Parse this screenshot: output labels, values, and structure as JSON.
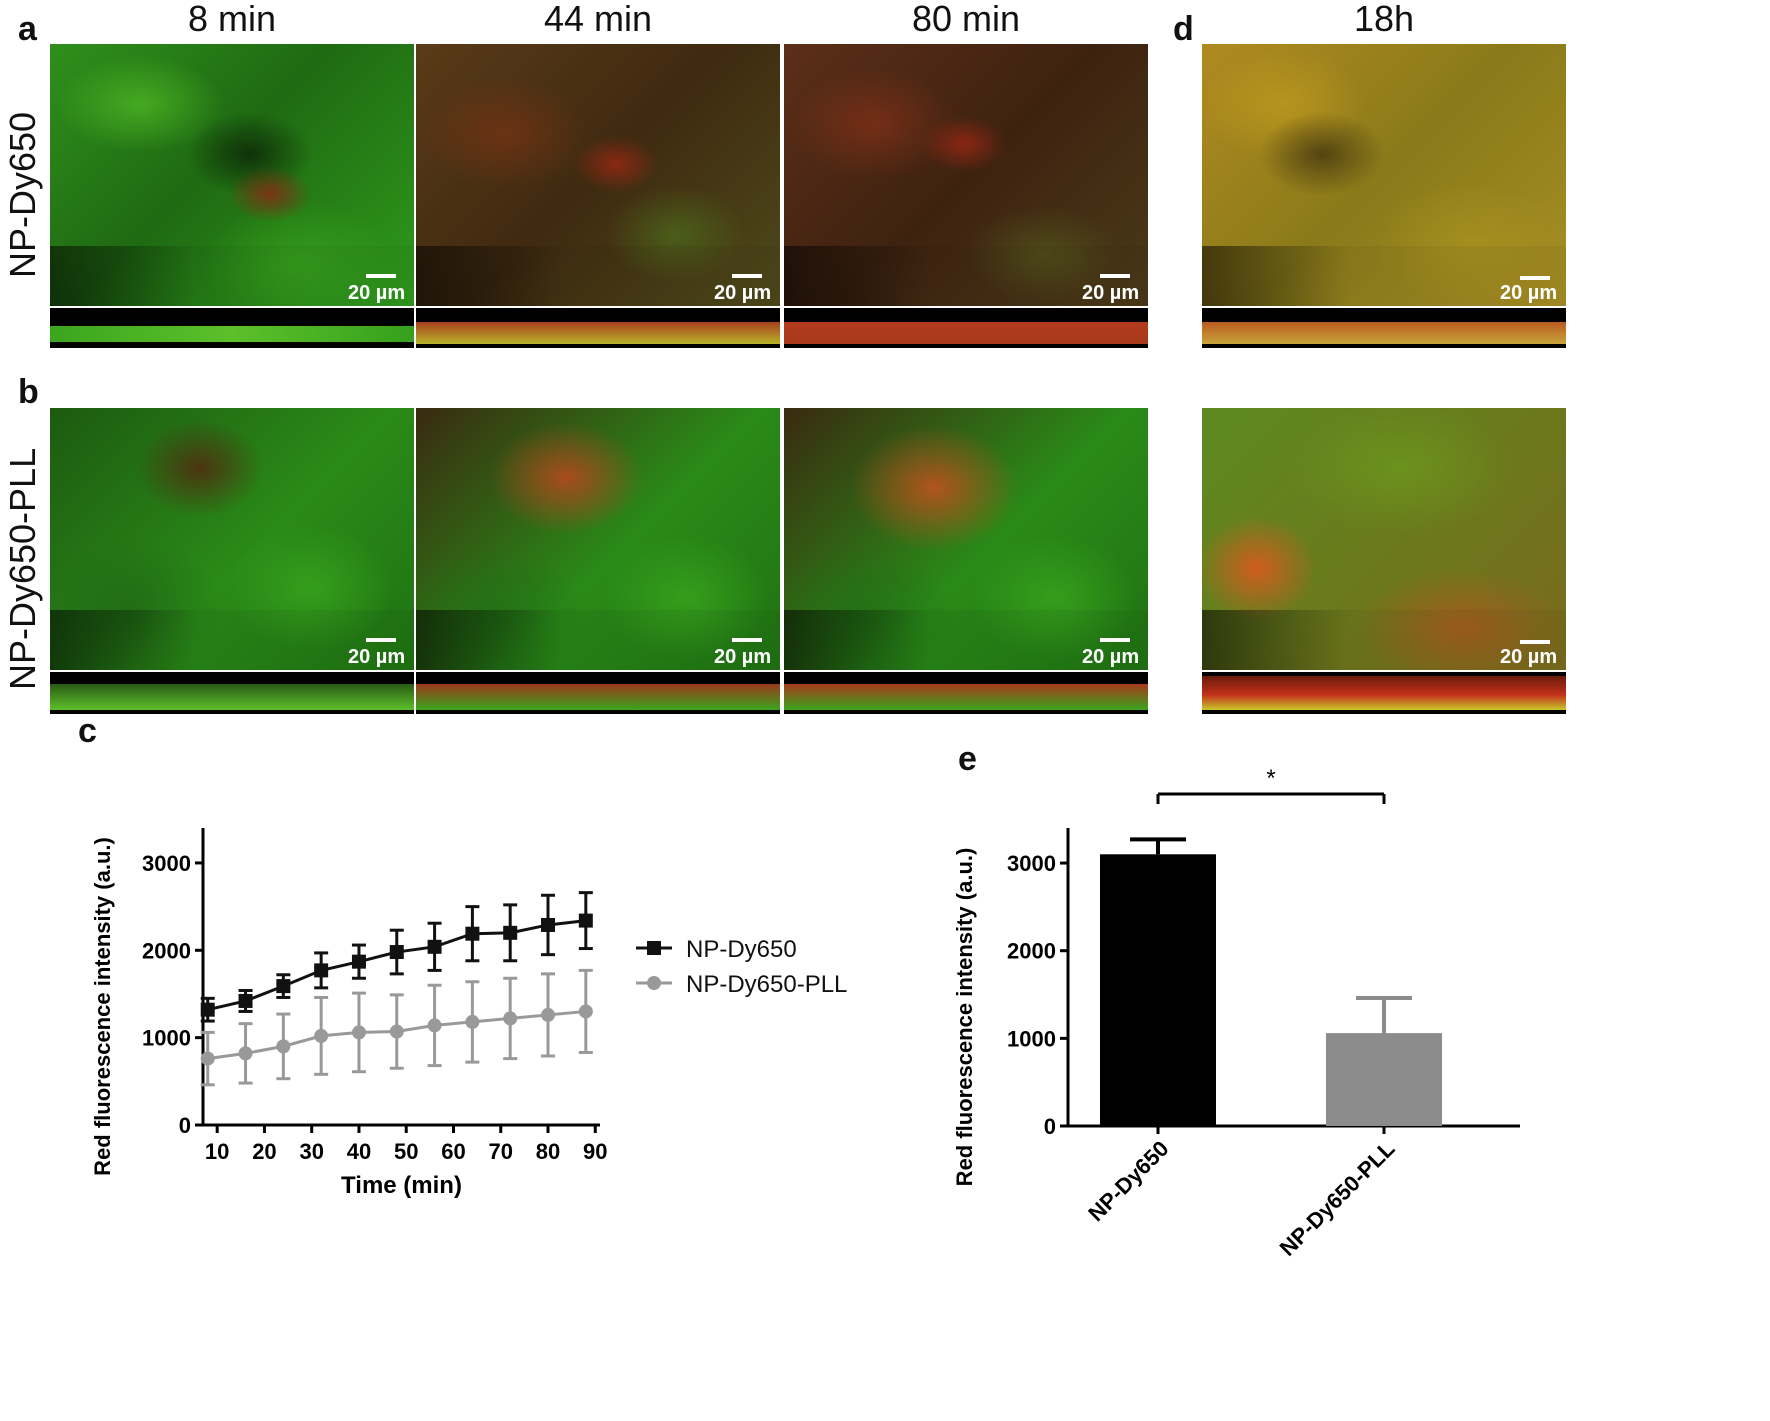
{
  "panel_letters": {
    "a": "a",
    "b": "b",
    "c": "c",
    "d": "d",
    "e": "e"
  },
  "columns": [
    "8 min",
    "44 min",
    "80 min",
    "18h"
  ],
  "rows": [
    "NP-Dy650",
    "NP-Dy650-PLL"
  ],
  "scale_bar_label": "20 µm",
  "colors": {
    "black_series": "#111111",
    "gray_series": "#999999",
    "bar_black": "#000000",
    "bar_gray": "#8c8c8c",
    "fluor_green": "#2fae1c",
    "fluor_red": "#c2301a",
    "fluor_yellow": "#c8b020"
  },
  "chart_data": [
    {
      "panel": "c",
      "type": "line",
      "xlabel": "Time (min)",
      "ylabel": "Red fluorescence intensity (a.u.)",
      "xlim": [
        7,
        91
      ],
      "ylim": [
        0,
        3400
      ],
      "xticks": [
        10,
        20,
        30,
        40,
        50,
        60,
        70,
        80,
        90
      ],
      "yticks": [
        0,
        1000,
        2000,
        3000
      ],
      "x": [
        8,
        16,
        24,
        32,
        40,
        48,
        56,
        64,
        72,
        80,
        88
      ],
      "series": [
        {
          "name": "NP-Dy650",
          "marker": "square",
          "values": [
            1320,
            1420,
            1590,
            1770,
            1870,
            1980,
            2040,
            2190,
            2200,
            2290,
            2340
          ],
          "errors": [
            130,
            120,
            130,
            200,
            190,
            250,
            270,
            310,
            320,
            340,
            320
          ]
        },
        {
          "name": "NP-Dy650-PLL",
          "marker": "circle",
          "values": [
            760,
            820,
            900,
            1020,
            1060,
            1070,
            1140,
            1180,
            1220,
            1260,
            1300
          ],
          "errors": [
            300,
            340,
            370,
            440,
            450,
            420,
            460,
            460,
            460,
            470,
            470
          ]
        }
      ],
      "legend": [
        "NP-Dy650",
        "NP-Dy650-PLL"
      ]
    },
    {
      "panel": "e",
      "type": "bar",
      "ylabel": "Red fluorescence intensity (a.u.)",
      "categories": [
        "NP-Dy650",
        "NP-Dy650-PLL"
      ],
      "values": [
        3100,
        1060
      ],
      "errors": [
        170,
        400
      ],
      "ylim": [
        0,
        3400
      ],
      "yticks": [
        0,
        1000,
        2000,
        3000
      ],
      "significance": "*"
    }
  ]
}
